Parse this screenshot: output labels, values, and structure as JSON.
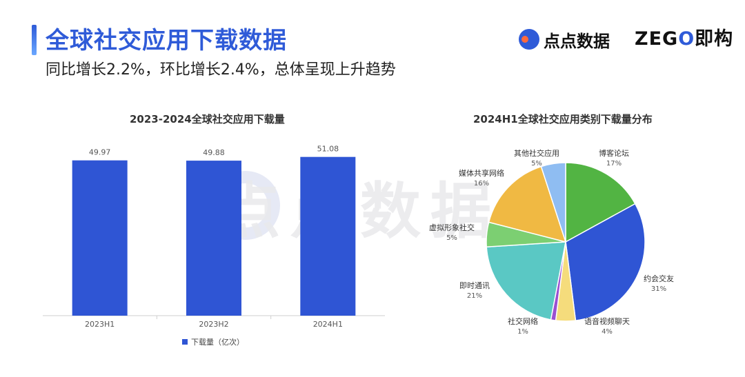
{
  "header": {
    "title": "全球社交应用下载数据",
    "subtitle": "同比增长2.2%，环比增长2.4%，总体呈现上升趋势"
  },
  "brand": {
    "diandian_name": "点点数据",
    "zego_prefix": "ZEG",
    "zego_o": "O",
    "zego_suffix": "即构"
  },
  "watermark": {
    "text": "点点数据"
  },
  "chart_data": [
    {
      "type": "bar",
      "title": "2023-2024全球社交应用下载量",
      "categories": [
        "2023H1",
        "2023H2",
        "2024H1"
      ],
      "series": [
        {
          "name": "下载量（亿次）",
          "values": [
            49.97,
            49.88,
            51.08
          ],
          "color": "#2f55d4"
        }
      ],
      "value_labels": [
        "49.97",
        "49.88",
        "51.08"
      ],
      "legend_position": "bottom"
    },
    {
      "type": "pie",
      "title": "2024H1全球社交应用类别下载量分布",
      "slices": [
        {
          "label": "博客论坛",
          "pct_label": "17%",
          "value": 17,
          "color": "#52b443"
        },
        {
          "label": "约会交友",
          "pct_label": "31%",
          "value": 31,
          "color": "#2f55d4"
        },
        {
          "label": "语音视频聊天",
          "pct_label": "4%",
          "value": 4,
          "color": "#f5dc7c"
        },
        {
          "label": "社交网络",
          "pct_label": "1%",
          "value": 1,
          "color": "#9b4fd1"
        },
        {
          "label": "即时通讯",
          "pct_label": "21%",
          "value": 21,
          "color": "#5ac8c4"
        },
        {
          "label": "虚拟形象社交",
          "pct_label": "5%",
          "value": 5,
          "color": "#7ccf72"
        },
        {
          "label": "媒体共享网络",
          "pct_label": "16%",
          "value": 16,
          "color": "#f0b943"
        },
        {
          "label": "其他社交应用",
          "pct_label": "5%",
          "value": 5,
          "color": "#8fbdf2"
        }
      ]
    }
  ]
}
